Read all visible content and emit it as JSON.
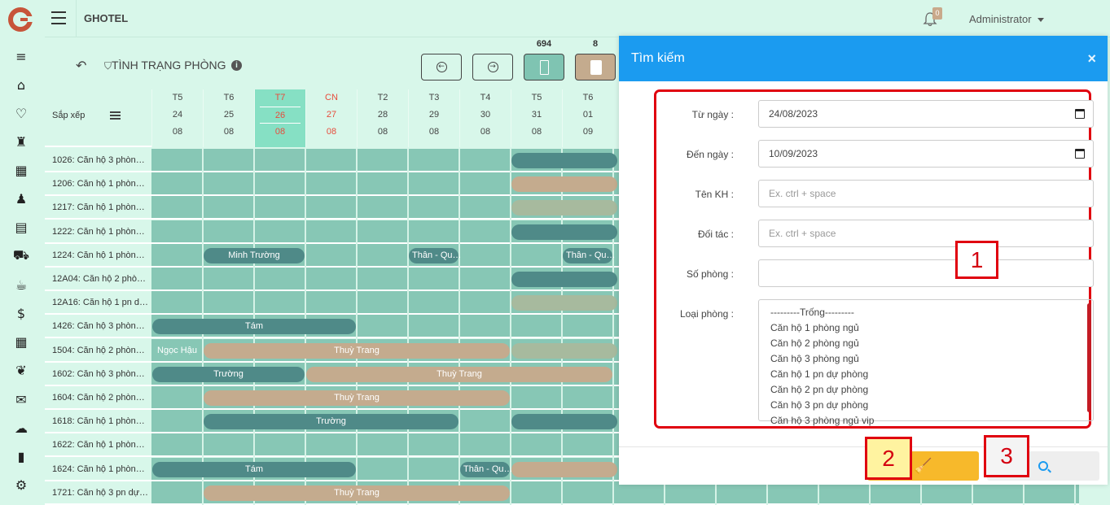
{
  "app": {
    "brand": "GHOTEL",
    "notification_count": "0",
    "user": "Administrator"
  },
  "sidebar": {
    "icons": [
      "menu-icon",
      "home-icon",
      "handshake-icon",
      "reception-icon",
      "building-icon",
      "users-icon",
      "grid-icon",
      "cart-icon",
      "coffee-icon",
      "dollar-icon",
      "table-icon",
      "leaf-icon",
      "mail-icon",
      "chat-icon",
      "chart-icon",
      "settings-icon"
    ]
  },
  "toolbar": {
    "title": "TÌNH TRẠNG PHÒNG",
    "count_1": "694",
    "count_2": "8"
  },
  "grid": {
    "sort_label": "Sắp xếp",
    "days": [
      {
        "dow": "T5",
        "day": "24",
        "month": "08"
      },
      {
        "dow": "T6",
        "day": "25",
        "month": "08"
      },
      {
        "dow": "T7",
        "day": "26",
        "month": "08"
      },
      {
        "dow": "CN",
        "day": "27",
        "month": "08"
      },
      {
        "dow": "T2",
        "day": "28",
        "month": "08"
      },
      {
        "dow": "T3",
        "day": "29",
        "month": "08"
      },
      {
        "dow": "T4",
        "day": "30",
        "month": "08"
      },
      {
        "dow": "T5",
        "day": "31",
        "month": "08"
      },
      {
        "dow": "T6",
        "day": "01",
        "month": "09"
      }
    ],
    "rooms": [
      "1026: Căn hộ 3 phòn…",
      "1206: Căn hộ 1 phòn…",
      "1217: Căn hộ 1 phòn…",
      "1222: Căn hộ 1 phòn…",
      "1224: Căn hộ 1 phòn…",
      "12A04: Căn hộ 2 phò…",
      "12A16: Căn hộ 1 pn d…",
      "1426: Căn hộ 3 phòn…",
      "1504: Căn hộ 2 phòn…",
      "1602: Căn hộ 3 phòn…",
      "1604: Căn hộ 2 phòn…",
      "1618: Căn hộ 1 phòn…",
      "1622: Căn hộ 1 phòn…",
      "1624: Căn hộ 1 phòn…",
      "1721: Căn hộ 3 pn dự…"
    ],
    "bookings": [
      {
        "row": 0,
        "start": 7,
        "span": 2.1,
        "style": "dark",
        "label": ""
      },
      {
        "row": 1,
        "start": 7,
        "span": 2.1,
        "style": "tan",
        "label": ""
      },
      {
        "row": 2,
        "start": 7,
        "span": 2.1,
        "style": "grey",
        "label": ""
      },
      {
        "row": 3,
        "start": 7,
        "span": 2.1,
        "style": "dark",
        "label": ""
      },
      {
        "row": 4,
        "start": 1,
        "span": 2,
        "style": "dark",
        "label": "Minh Trường"
      },
      {
        "row": 4,
        "start": 5,
        "span": 1,
        "style": "dark",
        "label": "Thân - Qu…"
      },
      {
        "row": 4,
        "start": 8,
        "span": 1,
        "style": "dark",
        "label": "Thân - Qu…"
      },
      {
        "row": 5,
        "start": 7,
        "span": 2.1,
        "style": "dark",
        "label": ""
      },
      {
        "row": 6,
        "start": 7,
        "span": 2.1,
        "style": "grey",
        "label": ""
      },
      {
        "row": 7,
        "start": 0,
        "span": 4,
        "style": "dark",
        "label": "Tám"
      },
      {
        "row": 8,
        "start": 0,
        "span": 1,
        "style": "plain",
        "label": "Ngọc Hậu"
      },
      {
        "row": 8,
        "start": 1,
        "span": 6,
        "style": "tan",
        "label": "Thuỳ Trang"
      },
      {
        "row": 8,
        "start": 7,
        "span": 2.1,
        "style": "grey",
        "label": ""
      },
      {
        "row": 9,
        "start": 0,
        "span": 3,
        "style": "dark",
        "label": "Trường"
      },
      {
        "row": 9,
        "start": 3,
        "span": 6,
        "style": "tan",
        "label": "Thuỳ Trang"
      },
      {
        "row": 10,
        "start": 1,
        "span": 6,
        "style": "tan",
        "label": "Thuỳ Trang"
      },
      {
        "row": 11,
        "start": 1,
        "span": 5,
        "style": "dark",
        "label": "Trường"
      },
      {
        "row": 11,
        "start": 7,
        "span": 2.1,
        "style": "dark",
        "label": ""
      },
      {
        "row": 13,
        "start": 0,
        "span": 4,
        "style": "dark",
        "label": "Tám"
      },
      {
        "row": 13,
        "start": 6,
        "span": 1,
        "style": "dark",
        "label": "Thân - Qu…"
      },
      {
        "row": 13,
        "start": 7,
        "span": 2.1,
        "style": "tan",
        "label": ""
      },
      {
        "row": 14,
        "start": 1,
        "span": 6,
        "style": "tan",
        "label": "Thuỳ Trang"
      }
    ]
  },
  "search_panel": {
    "title": "Tìm kiếm",
    "close": "×",
    "from_label": "Từ ngày :",
    "from_value": "24/08/2023",
    "to_label": "Đến ngày :",
    "to_value": "10/09/2023",
    "customer_label": "Tên KH :",
    "customer_placeholder": "Ex. ctrl + space",
    "partner_label": "Đối tác :",
    "partner_placeholder": "Ex. ctrl + space",
    "room_no_label": "Số phòng :",
    "room_no_value": "",
    "room_type_label": "Loại phòng :",
    "room_types": [
      "---------Trống---------",
      "Căn hộ 1 phòng ngủ",
      "Căn hộ 2 phòng ngủ",
      "Căn hộ 3 phòng ngủ",
      "Căn hộ 1 pn dự phòng",
      "Căn hộ 2 pn dự phòng",
      "Căn hộ 3 pn dự phòng",
      "Căn hộ 3 phòng ngủ vip"
    ]
  },
  "annotations": [
    "1",
    "2",
    "3"
  ],
  "colors": {
    "accent": "#1b9bf0",
    "warning": "#f7b92b",
    "booking_dark": "#4f8a88",
    "booking_tan": "#c4ab8e",
    "highlight": "#e0000f"
  }
}
